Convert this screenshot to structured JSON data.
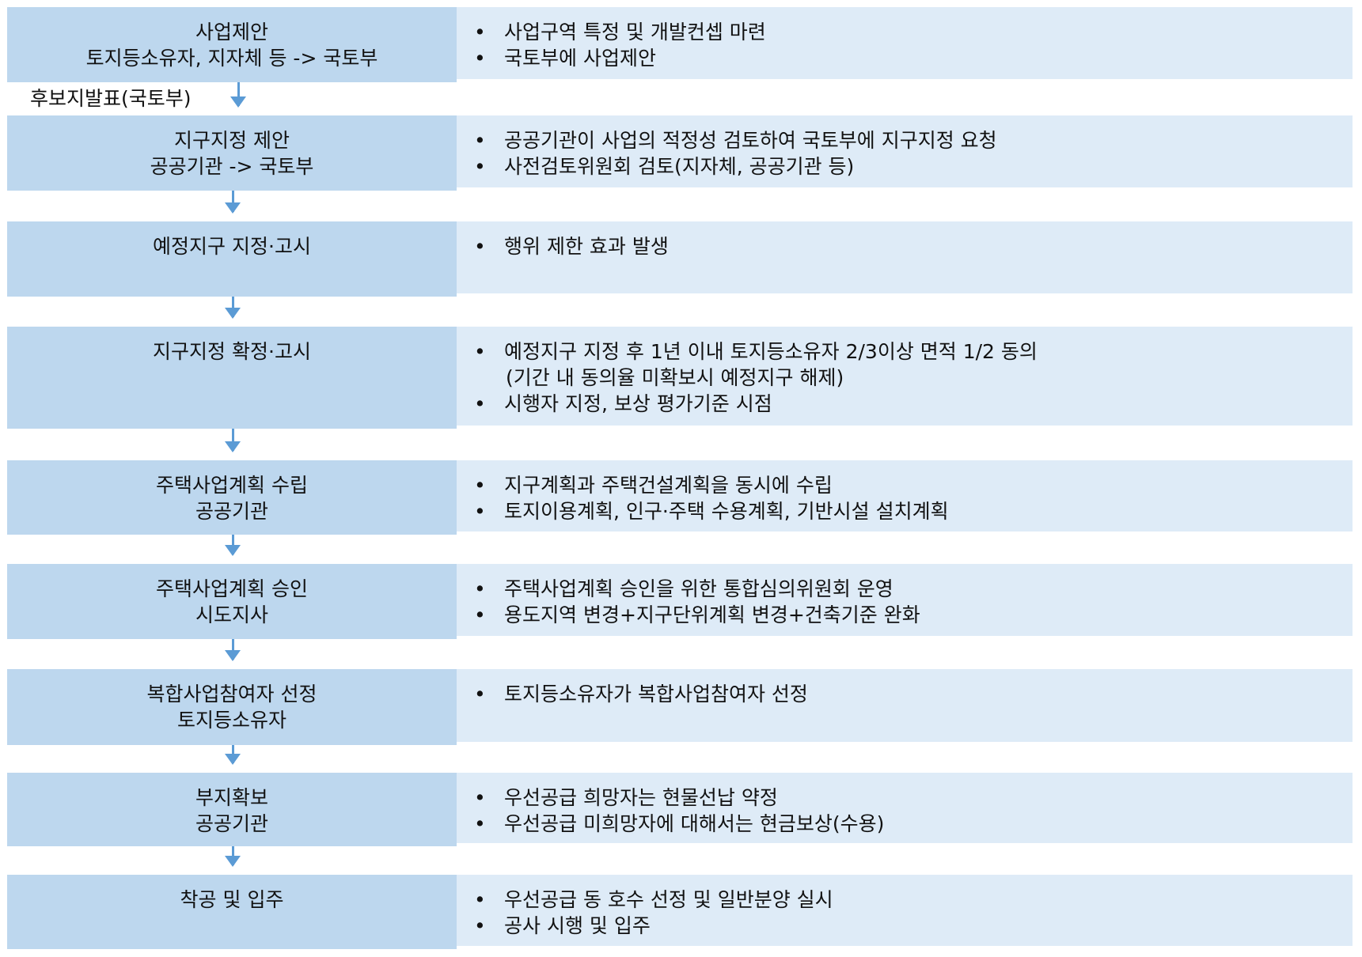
{
  "colors": {
    "step_fill": "#BDD7EE",
    "detail_fill": "#DEEBF7",
    "arrow": "#5B9BD5"
  },
  "edge_label": "후보지발표(국토부)",
  "steps": [
    {
      "title": [
        "사업제안",
        "토지등소유자, 지자체 등 -> 국토부"
      ],
      "details": [
        "사업구역 특정 및 개발컨셉 마련",
        "국토부에 사업제안"
      ]
    },
    {
      "title": [
        "지구지정 제안",
        "공공기관 -> 국토부"
      ],
      "details": [
        "공공기관이 사업의 적정성 검토하여 국토부에 지구지정 요청",
        "사전검토위원회 검토(지자체, 공공기관 등)"
      ]
    },
    {
      "title": [
        "예정지구 지정·고시"
      ],
      "details": [
        "행위 제한 효과 발생"
      ]
    },
    {
      "title": [
        "지구지정 확정·고시"
      ],
      "details": [
        "예정지구 지정 후 1년 이내 토지등소유자 2/3이상 면적 1/2 동의",
        "시행자 지정, 보상 평가기준 시점"
      ],
      "detail_continuation": "(기간 내 동의율 미확보시 예정지구 해제)"
    },
    {
      "title": [
        "주택사업계획 수립",
        "공공기관"
      ],
      "details": [
        "지구계획과 주택건설계획을 동시에 수립",
        "토지이용계획, 인구·주택 수용계획, 기반시설 설치계획"
      ]
    },
    {
      "title": [
        "주택사업계획 승인",
        "시도지사"
      ],
      "details": [
        "주택사업계획 승인을 위한 통합심의위원회 운영",
        "용도지역 변경+지구단위계획 변경+건축기준 완화"
      ]
    },
    {
      "title": [
        "복합사업참여자 선정",
        "토지등소유자"
      ],
      "details": [
        "토지등소유자가 복합사업참여자 선정"
      ]
    },
    {
      "title": [
        "부지확보",
        "공공기관"
      ],
      "details": [
        "우선공급 희망자는 현물선납 약정",
        "우선공급 미희망자에 대해서는 현금보상(수용)"
      ]
    },
    {
      "title": [
        "착공 및 입주"
      ],
      "details": [
        "우선공급 동 호수 선정 및 일반분양 실시",
        "공사 시행 및 입주"
      ]
    }
  ]
}
